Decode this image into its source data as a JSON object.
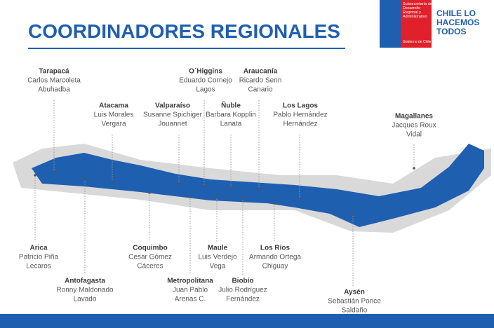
{
  "header": {
    "title": "COORDINADORES REGIONALES",
    "logo": {
      "agency": [
        "Subsecretaría de",
        "Desarrollo",
        "Regional y",
        "Administrativo"
      ],
      "government": "Gobierno de Chile",
      "slogan": [
        "CHILE LO",
        "HACEMOS",
        "TODOS"
      ]
    }
  },
  "regions": [
    {
      "name": "Tarapacá",
      "coordinator": [
        "Carlos Marcoleta",
        "Abuhadba"
      ]
    },
    {
      "name": "Atacama",
      "coordinator": [
        "Luis Morales",
        "Vergara"
      ]
    },
    {
      "name": "Valparaíso",
      "coordinator": [
        "Susanne Spichiger",
        "Jouannet"
      ]
    },
    {
      "name": "O´Higgins",
      "coordinator": [
        "Eduardo Cornejo",
        "Lagos"
      ]
    },
    {
      "name": "Ñuble",
      "coordinator": [
        "Barbara Kopplin",
        "Lanata"
      ]
    },
    {
      "name": "Araucanía",
      "coordinator": [
        "Ricardo Senn",
        "Canario"
      ]
    },
    {
      "name": "Los Lagos",
      "coordinator": [
        "Pablo Hernández",
        "Hernández"
      ]
    },
    {
      "name": "Magallanes",
      "coordinator": [
        "Jacques Roux",
        "Vidal"
      ]
    },
    {
      "name": "Arica",
      "coordinator": [
        "Patricio Piña",
        "Lecaros"
      ]
    },
    {
      "name": "Antofagasta",
      "coordinator": [
        "Ronny Maldonado",
        "Lavado"
      ]
    },
    {
      "name": "Coquimbo",
      "coordinator": [
        "Cesar Gómez",
        "Cáceres"
      ]
    },
    {
      "name": "Metropolitana",
      "coordinator": [
        "Juan Pablo",
        "Arenas C."
      ]
    },
    {
      "name": "Maule",
      "coordinator": [
        "Luis Verdejo",
        "Vega"
      ]
    },
    {
      "name": "Biobío",
      "coordinator": [
        "Julio Rodríguez",
        "Fernández"
      ]
    },
    {
      "name": "Los Ríos",
      "coordinator": [
        "Armando Ortega",
        "Chiguay"
      ]
    },
    {
      "name": "Aysén",
      "coordinator": [
        "Sebastián Ponce",
        "Saldaño"
      ]
    }
  ]
}
